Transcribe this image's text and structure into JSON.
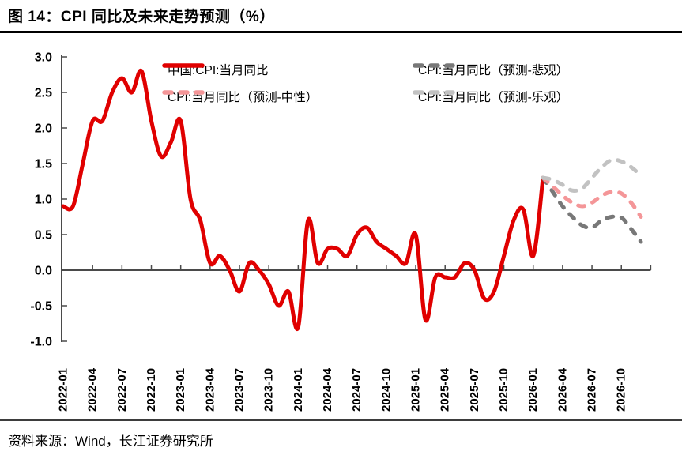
{
  "figure": {
    "title": "图 14：CPI 同比及未来走势预测（%）",
    "source": "资料来源：Wind，长江证券研究所"
  },
  "colors": {
    "actual": "#e00000",
    "forecast_pessimistic": "#787878",
    "forecast_neutral": "#f49698",
    "forecast_optimistic": "#c2c2c2",
    "axis": "#4a4a4a",
    "text": "#000000"
  },
  "legend": [
    {
      "key": "actual",
      "label": "中国:CPI:当月同比"
    },
    {
      "key": "pessimistic",
      "label": "CPI:当月同比（预测-悲观）"
    },
    {
      "key": "neutral",
      "label": "CPI:当月同比（预测-中性）"
    },
    {
      "key": "optimistic",
      "label": "CPI:当月同比（预测-乐观）"
    }
  ],
  "chart_data": {
    "type": "line",
    "title": "CPI 同比及未来走势预测（%）",
    "xlabel": "",
    "ylabel": "",
    "ylim": [
      -1.0,
      3.0
    ],
    "ytick_step": 0.5,
    "y_tick_labels": [
      "3.0",
      "2.5",
      "2.0",
      "1.5",
      "1.0",
      "0.5",
      "0.0",
      "-0.5",
      "-1.0"
    ],
    "x_tick_labels": [
      "2022-01",
      "2022-04",
      "2022-07",
      "2022-10",
      "2023-01",
      "2023-04",
      "2023-07",
      "2023-10",
      "2024-01",
      "2024-04",
      "2024-07",
      "2024-10",
      "2025-01",
      "2025-04",
      "2025-07",
      "2025-10",
      "2026-01",
      "2026-04",
      "2026-07",
      "2026-10"
    ],
    "x_months_per_tick": 3,
    "x_start": "2022-01",
    "x_end": "2027-01",
    "grid": false,
    "legend_position": "top",
    "series": [
      {
        "key": "actual",
        "name": "中国:CPI:当月同比",
        "style": "solid",
        "color": "#e00000",
        "start": "2022-01",
        "values": [
          0.9,
          0.9,
          1.5,
          2.1,
          2.1,
          2.5,
          2.7,
          2.5,
          2.8,
          2.1,
          1.6,
          1.8,
          2.1,
          1.0,
          0.7,
          0.1,
          0.2,
          0.0,
          -0.3,
          0.1,
          0.0,
          -0.2,
          -0.5,
          -0.3,
          -0.8,
          0.7,
          0.1,
          0.3,
          0.3,
          0.2,
          0.5,
          0.6,
          0.4,
          0.3,
          0.2,
          0.1,
          0.5,
          -0.7,
          -0.1,
          -0.1,
          -0.1,
          0.1,
          0.0,
          -0.4,
          -0.3,
          0.2,
          0.7,
          0.85,
          0.2,
          1.3
        ]
      },
      {
        "key": "pessimistic",
        "name": "CPI:当月同比（预测-悲观）",
        "style": "dashed",
        "color": "#787878",
        "start": "2026-02",
        "values": [
          1.3,
          1.1,
          0.9,
          0.75,
          0.63,
          0.6,
          0.7,
          0.75,
          0.74,
          0.58,
          0.4
        ]
      },
      {
        "key": "neutral",
        "name": "CPI:当月同比（预测-中性）",
        "style": "dashed",
        "color": "#f49698",
        "start": "2026-02",
        "values": [
          1.3,
          1.18,
          1.05,
          0.95,
          0.9,
          0.95,
          1.05,
          1.1,
          1.08,
          0.95,
          0.75
        ]
      },
      {
        "key": "optimistic",
        "name": "CPI:当月同比（预测-乐观）",
        "style": "dashed",
        "color": "#c2c2c2",
        "start": "2026-02",
        "values": [
          1.3,
          1.27,
          1.2,
          1.12,
          1.15,
          1.3,
          1.45,
          1.55,
          1.53,
          1.45,
          1.33
        ]
      }
    ]
  }
}
